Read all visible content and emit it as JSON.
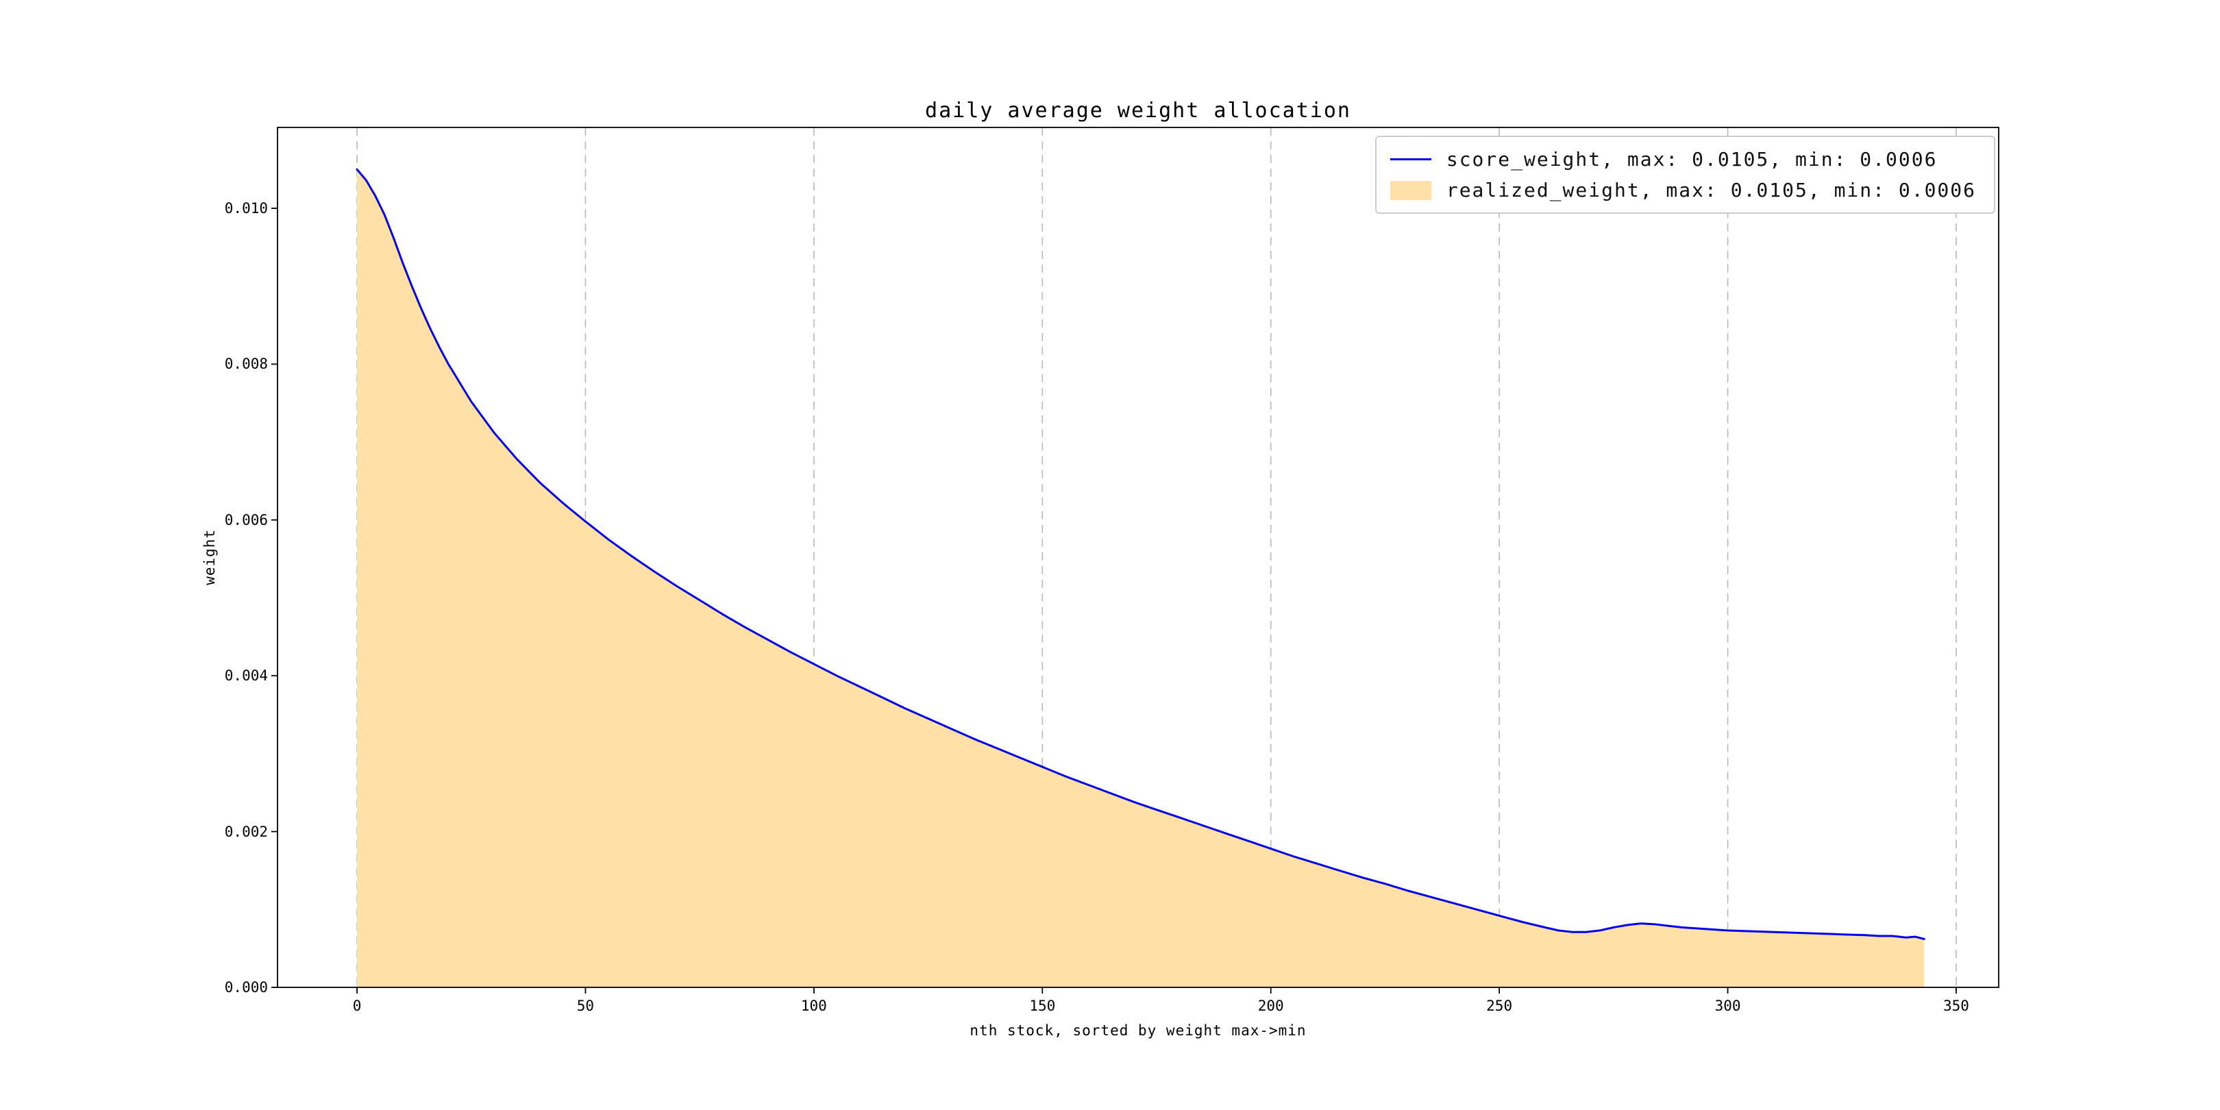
{
  "chart_data": {
    "type": "area",
    "title": "daily average weight allocation",
    "xlabel": "nth stock, sorted by weight max->min",
    "ylabel": "weight",
    "xlim": [
      -17.4,
      359.3
    ],
    "ylim": [
      0,
      0.011038
    ],
    "xticks": [
      0,
      50,
      100,
      150,
      200,
      250,
      300,
      350
    ],
    "xtick_labels": [
      "0",
      "50",
      "100",
      "150",
      "200",
      "250",
      "300",
      "350"
    ],
    "ytick_values": [
      0,
      0.002,
      0.004,
      0.006,
      0.008,
      0.01
    ],
    "ytick_labels": [
      "0.000",
      "0.002",
      "0.004",
      "0.006",
      "0.008",
      "0.010"
    ],
    "grid": {
      "axis": "x",
      "style": "dashed",
      "color": "#b8b8b8"
    },
    "legend_position": "upper right",
    "x": [
      0,
      2,
      4,
      6,
      8,
      10,
      12,
      14,
      16,
      18,
      20,
      25,
      30,
      35,
      40,
      45,
      50,
      55,
      60,
      65,
      70,
      75,
      80,
      85,
      90,
      95,
      100,
      105,
      110,
      115,
      120,
      125,
      130,
      135,
      140,
      145,
      150,
      155,
      160,
      165,
      170,
      175,
      180,
      185,
      190,
      195,
      200,
      205,
      210,
      215,
      220,
      225,
      230,
      235,
      240,
      245,
      250,
      255,
      260,
      263,
      266,
      269,
      272,
      275,
      278,
      281,
      284,
      287,
      290,
      295,
      300,
      305,
      310,
      315,
      320,
      325,
      330,
      333,
      336,
      339,
      341,
      343
    ],
    "series": [
      {
        "name": "score_weight",
        "style": "line",
        "color": "#0000ee",
        "legend": "score_weight, max: 0.0105, min: 0.0006",
        "max": 0.0105,
        "min": 0.0006,
        "y": [
          0.0105,
          0.01036,
          0.01016,
          0.00992,
          0.00962,
          0.0093,
          0.009,
          0.00872,
          0.00846,
          0.00822,
          0.008,
          0.00752,
          0.00712,
          0.00678,
          0.00648,
          0.00622,
          0.00598,
          0.00575,
          0.00554,
          0.00534,
          0.00515,
          0.00497,
          0.00479,
          0.00462,
          0.00446,
          0.0043,
          0.00415,
          0.004,
          0.00386,
          0.00372,
          0.00358,
          0.00345,
          0.00332,
          0.00319,
          0.00307,
          0.00295,
          0.00283,
          0.00271,
          0.0026,
          0.00249,
          0.00238,
          0.00228,
          0.00218,
          0.00208,
          0.00198,
          0.00188,
          0.00178,
          0.00168,
          0.00159,
          0.0015,
          0.00141,
          0.00133,
          0.00124,
          0.00116,
          0.00108,
          0.001,
          0.00092,
          0.00084,
          0.00077,
          0.00073,
          0.00071,
          0.00071,
          0.00073,
          0.00077,
          0.0008,
          0.00082,
          0.00081,
          0.00079,
          0.00077,
          0.00075,
          0.00073,
          0.00072,
          0.00071,
          0.0007,
          0.00069,
          0.00068,
          0.00067,
          0.00066,
          0.00066,
          0.00064,
          0.00065,
          0.00062
        ]
      },
      {
        "name": "realized_weight",
        "style": "area",
        "color": "#ffe0a6",
        "legend": "realized_weight, max: 0.0105, min: 0.0006",
        "max": 0.0105,
        "min": 0.0006,
        "y": [
          0.0105,
          0.01036,
          0.01016,
          0.00992,
          0.00962,
          0.0093,
          0.009,
          0.00872,
          0.00846,
          0.00822,
          0.008,
          0.00752,
          0.00712,
          0.00678,
          0.00648,
          0.00622,
          0.00598,
          0.00575,
          0.00554,
          0.00534,
          0.00515,
          0.00497,
          0.00479,
          0.00462,
          0.00446,
          0.0043,
          0.00415,
          0.004,
          0.00386,
          0.00372,
          0.00358,
          0.00345,
          0.00332,
          0.00319,
          0.00307,
          0.00295,
          0.00283,
          0.00271,
          0.0026,
          0.00249,
          0.00238,
          0.00228,
          0.00218,
          0.00208,
          0.00198,
          0.00188,
          0.00178,
          0.00168,
          0.00159,
          0.0015,
          0.00141,
          0.00133,
          0.00124,
          0.00116,
          0.00108,
          0.001,
          0.00092,
          0.00084,
          0.00077,
          0.00073,
          0.00071,
          0.00071,
          0.00073,
          0.00077,
          0.0008,
          0.00082,
          0.00081,
          0.00079,
          0.00077,
          0.00075,
          0.00073,
          0.00072,
          0.00071,
          0.0007,
          0.00069,
          0.00068,
          0.00067,
          0.00066,
          0.00066,
          0.00064,
          0.00065,
          0.00062
        ]
      }
    ],
    "colors": {
      "line": "#0000ee",
      "fill": "#ffe0a6",
      "grid": "#b8b8b8",
      "spine": "#000000",
      "legend_border": "#cccccc"
    }
  }
}
